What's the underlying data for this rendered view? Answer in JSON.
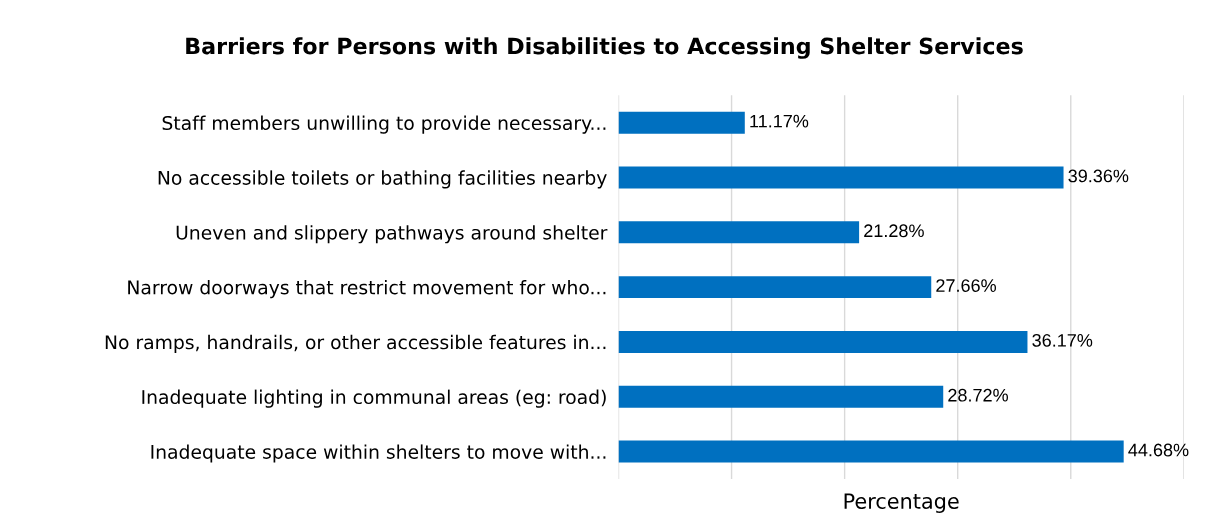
{
  "chart_data": {
    "type": "bar",
    "orientation": "horizontal",
    "title": "Barriers for Persons with Disabilities to Accessing Shelter Services",
    "xlabel": "Percentage",
    "categories": [
      "Staff members unwilling to provide necessary...",
      "No accessible toilets or bathing facilities nearby",
      "Uneven and slippery pathways around shelter",
      "Narrow doorways that restrict movement for who...",
      "No ramps, handrails, or other accessible features in...",
      "Inadequate lighting in communal areas (eg: road)",
      "Inadequate space within shelters to move with..."
    ],
    "values": [
      11.17,
      39.36,
      21.28,
      27.66,
      36.17,
      28.72,
      44.68
    ],
    "value_labels": [
      "11.17%",
      "39.36%",
      "21.28%",
      "27.66%",
      "36.17%",
      "28.72%",
      "44.68%"
    ],
    "color": "#0070c0",
    "xlim": [
      0,
      50
    ],
    "xticks": [
      {
        "value": 0,
        "label": null
      },
      {
        "value": 10,
        "label": null
      },
      {
        "value": 20,
        "label": null
      },
      {
        "value": 30,
        "label": null
      },
      {
        "value": 40,
        "label": null
      },
      {
        "value": 50,
        "label": null
      }
    ],
    "tick_labels": "y",
    "grid": "x"
  }
}
